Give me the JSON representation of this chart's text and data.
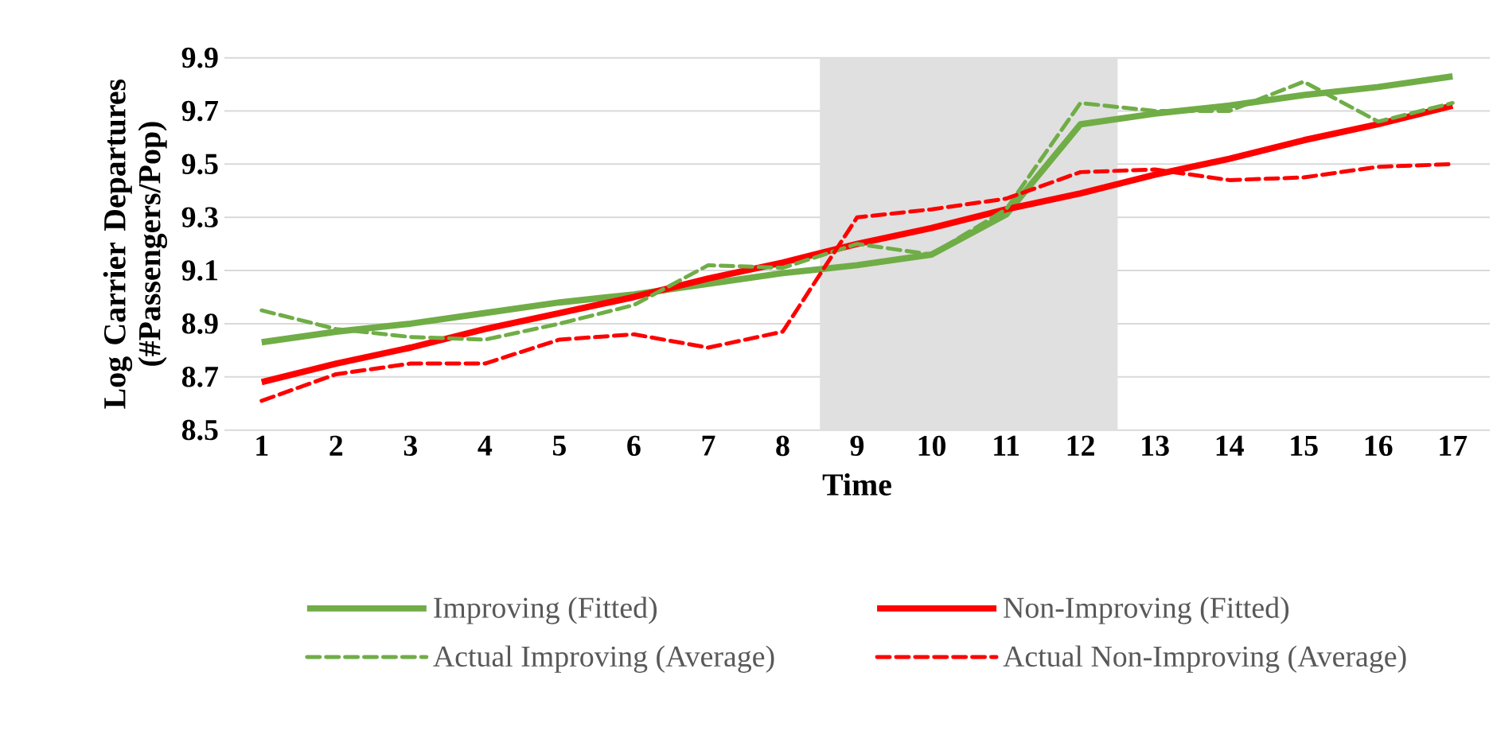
{
  "chart_data": {
    "type": "line",
    "xlabel": "Time",
    "ylabel": "Log Carrier Departures (#Passengers/Pop)",
    "x": [
      1,
      2,
      3,
      4,
      5,
      6,
      7,
      8,
      9,
      10,
      11,
      12,
      13,
      14,
      15,
      16,
      17
    ],
    "xlim": [
      0.5,
      17.5
    ],
    "xticks": [
      1,
      2,
      3,
      4,
      5,
      6,
      7,
      8,
      9,
      10,
      11,
      12,
      13,
      14,
      15,
      16,
      17
    ],
    "ylim": [
      8.5,
      9.9
    ],
    "yticks": [
      8.5,
      8.7,
      8.9,
      9.1,
      9.3,
      9.5,
      9.7,
      9.9
    ],
    "grid": "y",
    "legend": "bottom",
    "bands": [
      {
        "axis": "x",
        "from": 8.5,
        "to": 12.5,
        "color": "#e0e0e0"
      }
    ],
    "series": [
      {
        "name": "Improving (Fitted)",
        "color": "#70ad47",
        "line_style": "solid",
        "values": [
          8.83,
          8.87,
          8.9,
          8.94,
          8.98,
          9.01,
          9.05,
          9.09,
          9.12,
          9.16,
          9.31,
          9.65,
          9.69,
          9.72,
          9.76,
          9.79,
          9.83
        ]
      },
      {
        "name": "Non-Improving (Fitted)",
        "color": "#ff0000",
        "line_style": "solid",
        "values": [
          8.68,
          8.75,
          8.81,
          8.88,
          8.94,
          9.0,
          9.07,
          9.13,
          9.2,
          9.26,
          9.33,
          9.39,
          9.46,
          9.52,
          9.59,
          9.65,
          9.72
        ]
      },
      {
        "name": "Actual Improving (Average)",
        "color": "#70ad47",
        "line_style": "dashed",
        "values": [
          8.95,
          8.88,
          8.85,
          8.84,
          8.9,
          8.97,
          9.12,
          9.11,
          9.2,
          9.16,
          9.33,
          9.73,
          9.7,
          9.7,
          9.81,
          9.66,
          9.73
        ]
      },
      {
        "name": "Actual Non-Improving (Average)",
        "color": "#ff0000",
        "line_style": "dashed",
        "values": [
          8.61,
          8.71,
          8.75,
          8.75,
          8.84,
          8.86,
          8.81,
          8.87,
          9.3,
          9.33,
          9.37,
          9.47,
          9.48,
          9.44,
          9.45,
          9.49,
          9.5
        ]
      }
    ]
  }
}
